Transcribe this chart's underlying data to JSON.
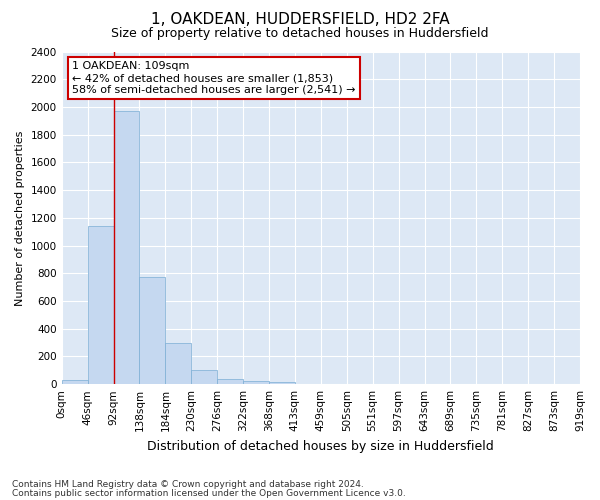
{
  "title": "1, OAKDEAN, HUDDERSFIELD, HD2 2FA",
  "subtitle": "Size of property relative to detached houses in Huddersfield",
  "xlabel": "Distribution of detached houses by size in Huddersfield",
  "ylabel": "Number of detached properties",
  "footnote1": "Contains HM Land Registry data © Crown copyright and database right 2024.",
  "footnote2": "Contains public sector information licensed under the Open Government Licence v3.0.",
  "bar_values": [
    30,
    1140,
    1970,
    775,
    300,
    105,
    40,
    25,
    15,
    0,
    0,
    0,
    0,
    0,
    0,
    0,
    0,
    0,
    0,
    0
  ],
  "bar_color": "#c5d8f0",
  "bar_edge_color": "#7aadd4",
  "x_labels": [
    "0sqm",
    "46sqm",
    "92sqm",
    "138sqm",
    "184sqm",
    "230sqm",
    "276sqm",
    "322sqm",
    "368sqm",
    "413sqm",
    "459sqm",
    "505sqm",
    "551sqm",
    "597sqm",
    "643sqm",
    "689sqm",
    "735sqm",
    "781sqm",
    "827sqm",
    "873sqm",
    "919sqm"
  ],
  "ylim": [
    0,
    2400
  ],
  "yticks": [
    0,
    200,
    400,
    600,
    800,
    1000,
    1200,
    1400,
    1600,
    1800,
    2000,
    2200,
    2400
  ],
  "vline_x": 2.0,
  "vline_color": "#cc0000",
  "annotation_text": "1 OAKDEAN: 109sqm\n← 42% of detached houses are smaller (1,853)\n58% of semi-detached houses are larger (2,541) →",
  "annotation_box_color": "#ffffff",
  "annotation_box_edge": "#cc0000",
  "fig_bg_color": "#ffffff",
  "plot_bg_color": "#dde8f5",
  "grid_color": "#ffffff",
  "title_fontsize": 11,
  "subtitle_fontsize": 9,
  "ylabel_fontsize": 8,
  "xlabel_fontsize": 9,
  "tick_fontsize": 7.5,
  "annotation_fontsize": 8,
  "footnote_fontsize": 6.5
}
